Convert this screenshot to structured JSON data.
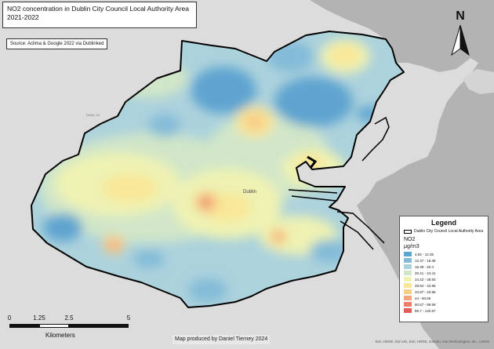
{
  "title_line1": "NO2 concentration in Dublin City Council Local Authority Area",
  "title_line2": "2021-2022",
  "source": "Source: Aclima & Google 2022 via Dublinked",
  "north_label": "N",
  "legend": {
    "title": "Legend",
    "boundary_label": "Dublin City Council Local Authority Area",
    "variable": "NO2",
    "unit": "μg/m3",
    "classes": [
      {
        "label": "4.84 - 12.36",
        "color": "#5ea4d0"
      },
      {
        "label": "12.37 - 16.38",
        "color": "#84bbd8"
      },
      {
        "label": "16.39 - 20.4",
        "color": "#acd2dc"
      },
      {
        "label": "20.41 - 24.41",
        "color": "#d1e6c8"
      },
      {
        "label": "24.42 - 28.93",
        "color": "#eef2b2"
      },
      {
        "label": "28.94 - 34.96",
        "color": "#f9e797"
      },
      {
        "label": "34.97 - 43.96",
        "color": "#f8cd86"
      },
      {
        "label": "44 - 60.56",
        "color": "#f4a57a"
      },
      {
        "label": "60.57 - 89.69",
        "color": "#ec8069"
      },
      {
        "label": "89.7 - 132.67",
        "color": "#e25c58"
      }
    ]
  },
  "scalebar": {
    "ticks": [
      "0",
      "1.25",
      "2.5",
      "5"
    ],
    "units": "Kilometers"
  },
  "credit": "Map produced by Daniel Tierney 2024",
  "attribution": "Esri, HERE, Esri UK, Esri, HERE, Garmin, GeoTechnologies, Inc., USGS",
  "basemap_labels": {
    "city": "Dublin"
  }
}
